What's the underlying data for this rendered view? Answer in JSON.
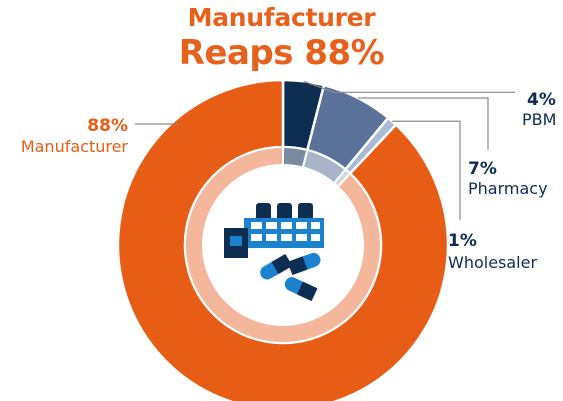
{
  "title_line1": "Manufacturer",
  "title_line2": "Reaps 88%",
  "colors": {
    "title": "#e8611a",
    "manufacturer": "#e85d16",
    "pbm": "#0d2d51",
    "pharmacy": "#5a7299",
    "wholesaler": "#a9bad6",
    "inner_ring": "#f4b79b",
    "label_dark": "#0d2d51",
    "leader": "#8a8a8a"
  },
  "icon": "factory-and-pills-icon",
  "chart_data": {
    "type": "pie",
    "style": "donut",
    "title": "Manufacturer Reaps 88%",
    "slices": [
      {
        "name": "PBM",
        "value": 4,
        "label": "4%"
      },
      {
        "name": "Pharmacy",
        "value": 7,
        "label": "7%"
      },
      {
        "name": "Wholesaler",
        "value": 1,
        "label": "1%"
      },
      {
        "name": "Manufacturer",
        "value": 88,
        "label": "88%"
      }
    ]
  }
}
